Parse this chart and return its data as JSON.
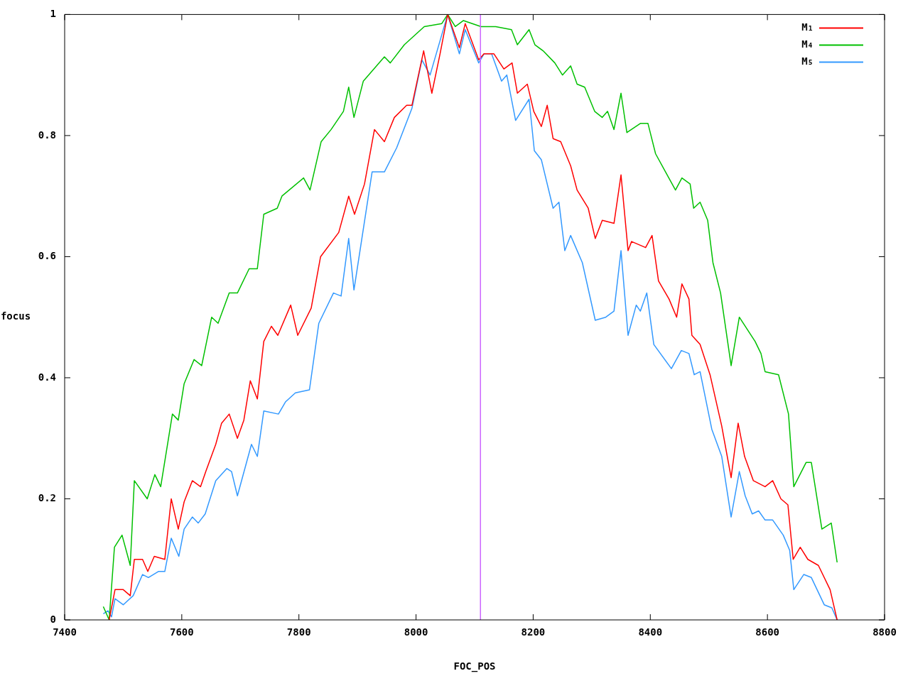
{
  "chart_data": {
    "type": "line",
    "xlabel": "FOC_POS",
    "ylabel": "focus",
    "xlim": [
      7400,
      8800
    ],
    "xticks": [
      7400,
      7600,
      7800,
      8000,
      8200,
      8400,
      8600,
      8800
    ],
    "ylim": [
      0,
      1
    ],
    "yticks": [
      0,
      0.2,
      0.4,
      0.6,
      0.8,
      1
    ],
    "grid": false,
    "legend": "top right",
    "marker": "none",
    "line_style": "solid",
    "ref_lines": [
      {
        "axis": "x",
        "value": 8110,
        "color": "#cc66ff"
      }
    ],
    "series": [
      {
        "name": "M₁",
        "color": "#ff0000",
        "x": [
          7476,
          7486,
          7500,
          7512,
          7519,
          7533,
          7542,
          7553,
          7571,
          7582,
          7594,
          7604,
          7618,
          7632,
          7641,
          7658,
          7668,
          7681,
          7695,
          7706,
          7717,
          7729,
          7740,
          7753,
          7764,
          7786,
          7798,
          7821,
          7837,
          7868,
          7885,
          7895,
          7912,
          7929,
          7946,
          7963,
          7984,
          7993,
          8013,
          8027,
          8041,
          8054,
          8074,
          8084,
          8107,
          8116,
          8133,
          8150,
          8164,
          8173,
          8190,
          8201,
          8214,
          8224,
          8234,
          8247,
          8264,
          8275,
          8294,
          8306,
          8318,
          8338,
          8350,
          8362,
          8368,
          8392,
          8403,
          8414,
          8432,
          8445,
          8454,
          8466,
          8471,
          8485,
          8502,
          8522,
          8538,
          8550,
          8561,
          8576,
          8596,
          8609,
          8623,
          8635,
          8644,
          8656,
          8669,
          8687,
          8707,
          8719
        ],
        "values": [
          0,
          0.05,
          0.05,
          0.04,
          0.1,
          0.1,
          0.08,
          0.105,
          0.1,
          0.2,
          0.15,
          0.195,
          0.23,
          0.22,
          0.245,
          0.29,
          0.325,
          0.34,
          0.3,
          0.33,
          0.395,
          0.365,
          0.46,
          0.485,
          0.47,
          0.52,
          0.47,
          0.515,
          0.6,
          0.64,
          0.7,
          0.67,
          0.72,
          0.81,
          0.79,
          0.83,
          0.85,
          0.85,
          0.94,
          0.87,
          0.935,
          1,
          0.945,
          0.985,
          0.925,
          0.935,
          0.935,
          0.91,
          0.92,
          0.87,
          0.885,
          0.84,
          0.815,
          0.85,
          0.795,
          0.79,
          0.75,
          0.71,
          0.68,
          0.63,
          0.66,
          0.655,
          0.735,
          0.61,
          0.625,
          0.615,
          0.635,
          0.56,
          0.53,
          0.5,
          0.555,
          0.53,
          0.47,
          0.455,
          0.405,
          0.32,
          0.235,
          0.325,
          0.27,
          0.23,
          0.22,
          0.23,
          0.2,
          0.19,
          0.1,
          0.12,
          0.1,
          0.09,
          0.05,
          0
        ]
      },
      {
        "name": "M₄",
        "color": "#00c000",
        "x": [
          7466,
          7476,
          7485,
          7498,
          7512,
          7519,
          7541,
          7554,
          7564,
          7584,
          7594,
          7604,
          7621,
          7634,
          7651,
          7662,
          7681,
          7695,
          7715,
          7729,
          7740,
          7763,
          7771,
          7808,
          7819,
          7838,
          7855,
          7876,
          7885,
          7894,
          7910,
          7946,
          7956,
          7980,
          8014,
          8044,
          8054,
          8067,
          8081,
          8111,
          8123,
          8136,
          8163,
          8173,
          8193,
          8203,
          8217,
          8237,
          8250,
          8264,
          8275,
          8288,
          8305,
          8318,
          8327,
          8338,
          8350,
          8360,
          8383,
          8396,
          8409,
          8426,
          8443,
          8454,
          8468,
          8474,
          8485,
          8498,
          8507,
          8520,
          8538,
          8552,
          8579,
          8589,
          8596,
          8619,
          8636,
          8645,
          8666,
          8675,
          8693,
          8709,
          8719
        ],
        "values": [
          0.022,
          0,
          0.12,
          0.14,
          0.09,
          0.23,
          0.2,
          0.24,
          0.22,
          0.34,
          0.33,
          0.39,
          0.43,
          0.42,
          0.5,
          0.49,
          0.54,
          0.54,
          0.58,
          0.58,
          0.67,
          0.68,
          0.7,
          0.73,
          0.71,
          0.79,
          0.81,
          0.84,
          0.88,
          0.83,
          0.89,
          0.93,
          0.92,
          0.95,
          0.98,
          0.985,
          1,
          0.98,
          0.99,
          0.98,
          0.98,
          0.98,
          0.975,
          0.95,
          0.975,
          0.95,
          0.94,
          0.92,
          0.9,
          0.915,
          0.885,
          0.88,
          0.84,
          0.83,
          0.84,
          0.81,
          0.87,
          0.805,
          0.82,
          0.82,
          0.77,
          0.74,
          0.71,
          0.73,
          0.72,
          0.68,
          0.69,
          0.66,
          0.59,
          0.54,
          0.42,
          0.5,
          0.46,
          0.44,
          0.41,
          0.405,
          0.34,
          0.22,
          0.26,
          0.26,
          0.15,
          0.16,
          0.095
        ]
      },
      {
        "name": "M₅",
        "color": "#3399ff",
        "x": [
          7466,
          7474,
          7480,
          7486,
          7500,
          7517,
          7533,
          7543,
          7560,
          7571,
          7582,
          7595,
          7604,
          7618,
          7628,
          7640,
          7658,
          7677,
          7685,
          7695,
          7719,
          7729,
          7740,
          7765,
          7777,
          7794,
          7818,
          7834,
          7859,
          7872,
          7885,
          7894,
          7925,
          7946,
          7967,
          7993,
          8010,
          8024,
          8054,
          8074,
          8084,
          8107,
          8116,
          8129,
          8146,
          8155,
          8170,
          8193,
          8202,
          8214,
          8234,
          8244,
          8254,
          8264,
          8284,
          8306,
          8324,
          8338,
          8350,
          8362,
          8376,
          8383,
          8394,
          8406,
          8436,
          8453,
          8466,
          8475,
          8485,
          8505,
          8522,
          8538,
          8552,
          8562,
          8574,
          8585,
          8596,
          8609,
          8627,
          8638,
          8645,
          8662,
          8675,
          8697,
          8710,
          8719
        ],
        "values": [
          0.01,
          0.015,
          0.005,
          0.035,
          0.025,
          0.04,
          0.075,
          0.07,
          0.08,
          0.08,
          0.135,
          0.105,
          0.15,
          0.17,
          0.16,
          0.175,
          0.23,
          0.25,
          0.245,
          0.205,
          0.29,
          0.27,
          0.345,
          0.34,
          0.36,
          0.375,
          0.38,
          0.49,
          0.54,
          0.535,
          0.63,
          0.545,
          0.74,
          0.74,
          0.78,
          0.845,
          0.925,
          0.9,
          1,
          0.935,
          0.975,
          0.92,
          0.935,
          0.935,
          0.89,
          0.9,
          0.825,
          0.86,
          0.775,
          0.76,
          0.68,
          0.69,
          0.61,
          0.635,
          0.59,
          0.495,
          0.5,
          0.51,
          0.61,
          0.47,
          0.52,
          0.51,
          0.54,
          0.455,
          0.415,
          0.445,
          0.44,
          0.405,
          0.41,
          0.315,
          0.27,
          0.17,
          0.245,
          0.205,
          0.175,
          0.18,
          0.165,
          0.165,
          0.14,
          0.115,
          0.05,
          0.075,
          0.07,
          0.025,
          0.02,
          0
        ]
      }
    ]
  }
}
